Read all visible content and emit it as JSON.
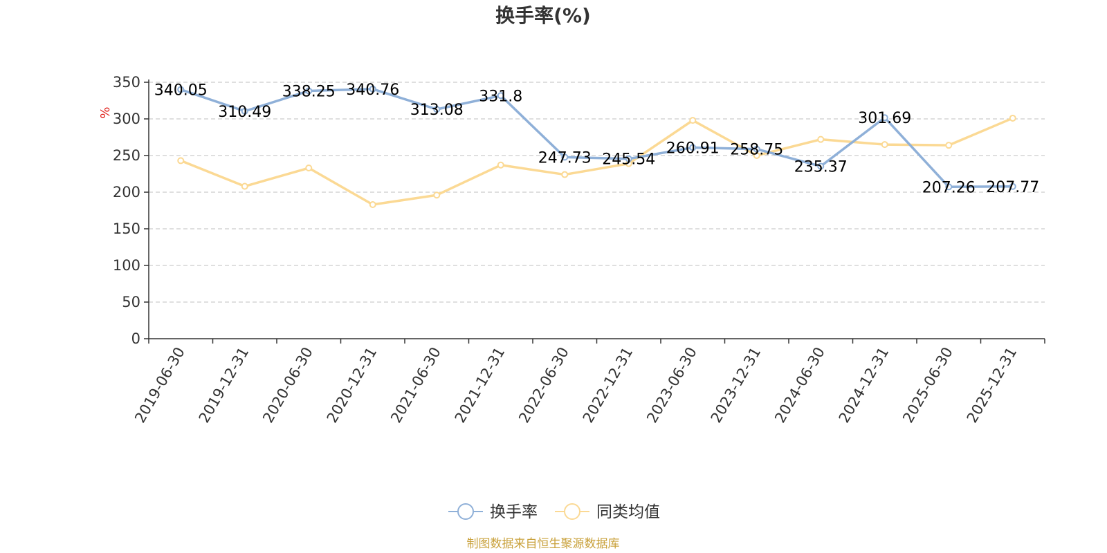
{
  "chart_data": {
    "type": "line",
    "title": "换手率(%)",
    "ylabel": "%",
    "ylim": [
      0,
      350
    ],
    "yticks": [
      0,
      50,
      100,
      150,
      200,
      250,
      300,
      350
    ],
    "categories": [
      "2019-06-30",
      "2019-12-31",
      "2020-06-30",
      "2020-12-31",
      "2021-06-30",
      "2021-12-31",
      "2022-06-30",
      "2022-12-31",
      "2023-06-30",
      "2023-12-31",
      "2024-06-30",
      "2024-12-31",
      "2025-06-30",
      "2025-12-31"
    ],
    "grid": true,
    "legend_position": "bottom",
    "series": [
      {
        "name": "换手率",
        "color": "#8fb0d8",
        "show_labels": true,
        "values": [
          340.05,
          310.49,
          338.25,
          340.76,
          313.08,
          331.8,
          247.73,
          245.54,
          260.91,
          258.75,
          235.37,
          301.69,
          207.26,
          207.77
        ],
        "labels": [
          "340.05",
          "310.49",
          "338.25",
          "340.76",
          "313.08",
          "331.8",
          "247.73",
          "245.54",
          "260.91",
          "258.75",
          "235.37",
          "301.69",
          "207.26",
          "207.77"
        ]
      },
      {
        "name": "同类均值",
        "color": "#fbd994",
        "show_labels": false,
        "values": [
          243,
          208,
          233,
          183,
          196,
          237,
          224,
          239,
          298,
          250,
          272,
          265,
          264,
          301
        ]
      }
    ]
  },
  "source": "制图数据来自恒生聚源数据库",
  "colors": {
    "axis": "#333333",
    "grid": "#cccccc",
    "text": "#333333",
    "ylabel": "#e0201b",
    "source": "#c9a13b"
  }
}
